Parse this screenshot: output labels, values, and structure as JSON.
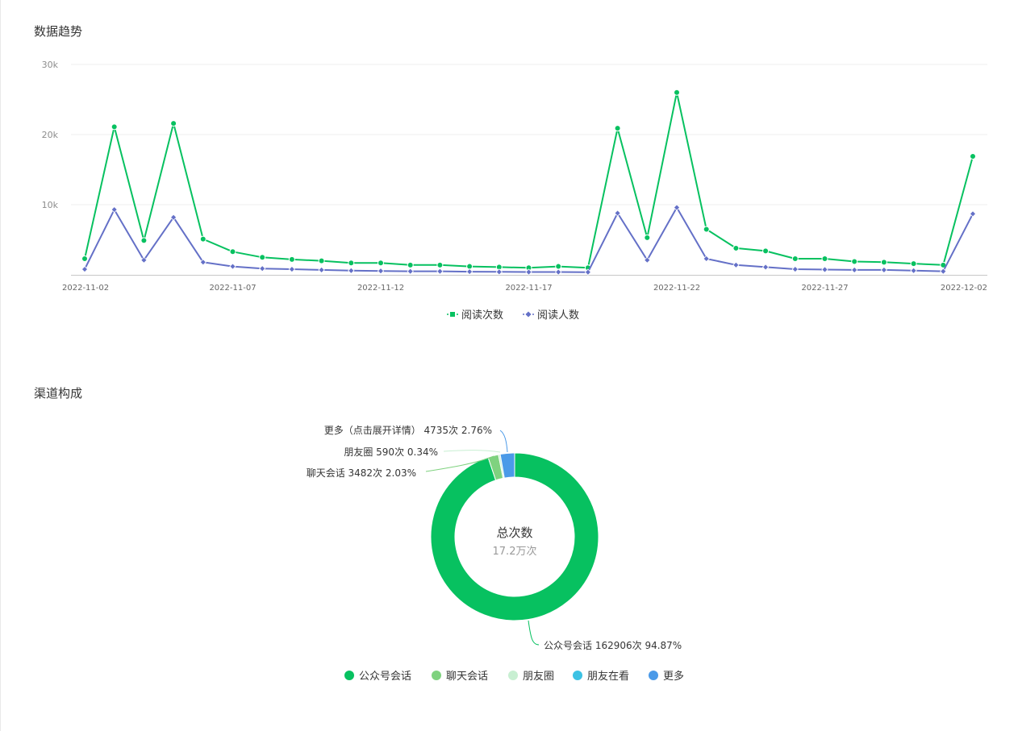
{
  "sections": {
    "trend_title": "数据趋势",
    "channel_title": "渠道构成"
  },
  "colors": {
    "reads": "#07c160",
    "readers": "#6470c7",
    "channel_public": "#07c160",
    "channel_chat": "#7fd27f",
    "channel_moments": "#c8efd2",
    "channel_friends_watching": "#3cc2e4",
    "channel_more": "#4b9ae8"
  },
  "chart_data": [
    {
      "type": "line",
      "title": "数据趋势",
      "x": [
        "2022-11-02",
        "2022-11-03",
        "2022-11-04",
        "2022-11-05",
        "2022-11-06",
        "2022-11-07",
        "2022-11-08",
        "2022-11-09",
        "2022-11-10",
        "2022-11-11",
        "2022-11-12",
        "2022-11-13",
        "2022-11-14",
        "2022-11-15",
        "2022-11-16",
        "2022-11-17",
        "2022-11-18",
        "2022-11-19",
        "2022-11-20",
        "2022-11-21",
        "2022-11-22",
        "2022-11-23",
        "2022-11-24",
        "2022-11-25",
        "2022-11-26",
        "2022-11-27",
        "2022-11-28",
        "2022-11-29",
        "2022-11-30",
        "2022-12-01",
        "2022-12-02"
      ],
      "x_tick_labels": [
        "2022-11-02",
        "2022-11-07",
        "2022-11-12",
        "2022-11-17",
        "2022-11-22",
        "2022-11-27",
        "2022-12-02"
      ],
      "ylim": [
        0,
        30000
      ],
      "y_ticks": [
        10000,
        20000,
        30000
      ],
      "y_tick_labels": [
        "10k",
        "20k",
        "30k"
      ],
      "grid": true,
      "legend_position": "bottom",
      "series": [
        {
          "name": "阅读次数",
          "marker": "circle",
          "values": [
            2300,
            21100,
            4900,
            21600,
            5100,
            3300,
            2500,
            2200,
            2000,
            1700,
            1700,
            1400,
            1400,
            1200,
            1100,
            1000,
            1200,
            1000,
            20900,
            5300,
            26000,
            6500,
            3800,
            3400,
            2300,
            2300,
            1900,
            1800,
            1600,
            1400,
            16900
          ]
        },
        {
          "name": "阅读人数",
          "marker": "diamond",
          "values": [
            800,
            9300,
            2100,
            8200,
            1800,
            1200,
            900,
            800,
            700,
            600,
            550,
            500,
            500,
            450,
            420,
            400,
            400,
            380,
            8800,
            2100,
            9600,
            2300,
            1400,
            1100,
            800,
            750,
            700,
            700,
            600,
            500,
            8700
          ]
        }
      ]
    },
    {
      "type": "pie",
      "title": "渠道构成",
      "center_title": "总次数",
      "center_value": "17.2万次",
      "slices": [
        {
          "name": "公众号会话",
          "value": 162906,
          "percent": 94.87,
          "label": "公众号会话 162906次 94.87%"
        },
        {
          "name": "聊天会话",
          "value": 3482,
          "percent": 2.03,
          "label": "聊天会话 3482次 2.03%"
        },
        {
          "name": "朋友圈",
          "value": 590,
          "percent": 0.34,
          "label": "朋友圈 590次 0.34%"
        },
        {
          "name": "朋友在看",
          "value": 0,
          "percent": 0,
          "label": ""
        },
        {
          "name": "更多",
          "value": 4735,
          "percent": 2.76,
          "label": "更多（点击展开详情） 4735次 2.76%"
        }
      ],
      "legend": [
        "公众号会话",
        "聊天会话",
        "朋友圈",
        "朋友在看",
        "更多"
      ],
      "legend_position": "bottom"
    }
  ]
}
